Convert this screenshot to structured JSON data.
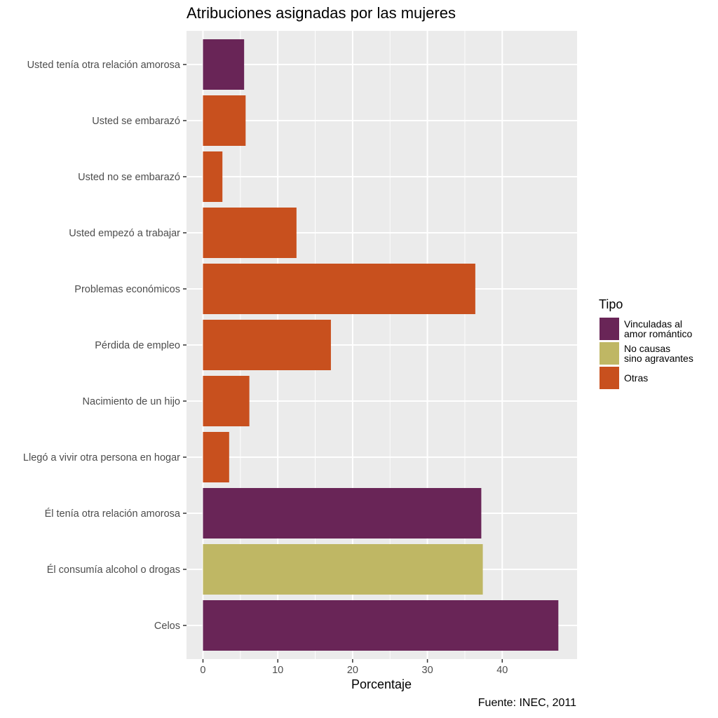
{
  "chart_data": {
    "type": "bar",
    "orientation": "horizontal",
    "title": "Atribuciones asignadas por las mujeres",
    "xlabel": "Porcentaje",
    "ylabel": "",
    "xlim": [
      -2.2,
      50
    ],
    "xticks": [
      0,
      10,
      20,
      30,
      40
    ],
    "grid": true,
    "categories": [
      "Usted tenía otra relación amorosa",
      "Usted se embarazó",
      "Usted no se embarazó",
      "Usted empezó a trabajar",
      "Problemas económicos",
      "Pérdida de empleo",
      "Nacimiento de un hijo",
      "Llegó a vivir otra persona en hogar",
      "Él tenía otra relación amorosa",
      "Él consumía alcohol o drogas",
      "Celos"
    ],
    "values": [
      5.5,
      5.7,
      2.6,
      12.5,
      36.4,
      17.1,
      6.2,
      3.5,
      37.2,
      37.4,
      47.5
    ],
    "types": [
      "Vinculadas al amor romántico",
      "Otras",
      "Otras",
      "Otras",
      "Otras",
      "Otras",
      "Otras",
      "Otras",
      "Vinculadas al amor romántico",
      "No causas sino agravantes",
      "Vinculadas al amor romántico"
    ],
    "legend": {
      "title": "Tipo",
      "position": "right",
      "entries": [
        {
          "label": "Vinculadas al\namor romántico",
          "key": "Vinculadas al amor romántico",
          "color": "#692557"
        },
        {
          "label": "No causas\nsino agravantes",
          "key": "No causas sino agravantes",
          "color": "#bfb764"
        },
        {
          "label": "Otras",
          "key": "Otras",
          "color": "#c8501e"
        }
      ]
    },
    "caption": "Fuente: INEC, 2011"
  },
  "colors": {
    "panel_background": "#ebebeb",
    "grid_major": "#ffffff",
    "axis_text": "#4d4d4d"
  }
}
